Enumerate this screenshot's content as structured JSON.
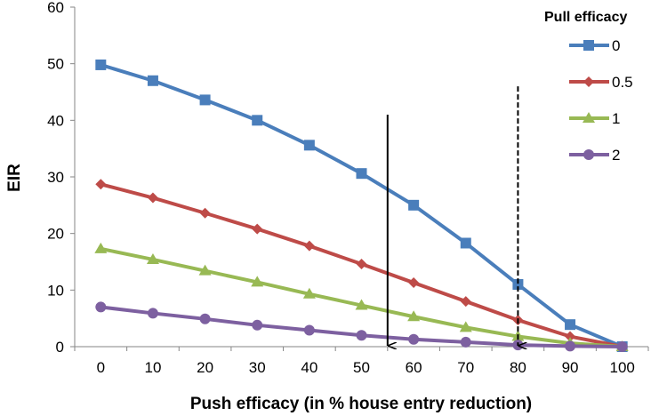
{
  "chart_data": {
    "type": "line",
    "title": "",
    "xlabel": "Push efficacy (in % house entry reduction)",
    "ylabel": "EIR",
    "categories": [
      "0",
      "10",
      "20",
      "30",
      "40",
      "50",
      "60",
      "70",
      "80",
      "90",
      "100"
    ],
    "ylim": [
      0,
      60
    ],
    "yticks": [
      "0",
      "10",
      "20",
      "30",
      "40",
      "50",
      "60"
    ],
    "grid": false,
    "legend": {
      "title": "Pull efficacy",
      "placement": "top-right"
    },
    "series": [
      {
        "name": "0",
        "color": "#4a7ebb",
        "marker": "square",
        "values": [
          49.8,
          47.0,
          43.6,
          40.0,
          35.6,
          30.6,
          25.0,
          18.3,
          11.0,
          3.9,
          0
        ]
      },
      {
        "name": "0.5",
        "color": "#be4b48",
        "marker": "diamond",
        "values": [
          28.7,
          26.3,
          23.6,
          20.8,
          17.8,
          14.6,
          11.3,
          8.0,
          4.7,
          1.8,
          0
        ]
      },
      {
        "name": "1",
        "color": "#98b954",
        "marker": "triangle",
        "values": [
          17.3,
          15.4,
          13.4,
          11.4,
          9.3,
          7.3,
          5.3,
          3.4,
          1.8,
          0.6,
          0
        ]
      },
      {
        "name": "2",
        "color": "#7d60a0",
        "marker": "circle",
        "values": [
          7.0,
          5.9,
          4.9,
          3.8,
          2.9,
          2.0,
          1.3,
          0.8,
          0.3,
          0.1,
          0
        ]
      }
    ],
    "annotations": [
      {
        "type": "arrow",
        "style": "solid",
        "x": 55,
        "y_from": 41,
        "y_to": 0
      },
      {
        "type": "arrow",
        "style": "dashed",
        "x": 80,
        "y_from": 46,
        "y_to": 0
      }
    ]
  }
}
